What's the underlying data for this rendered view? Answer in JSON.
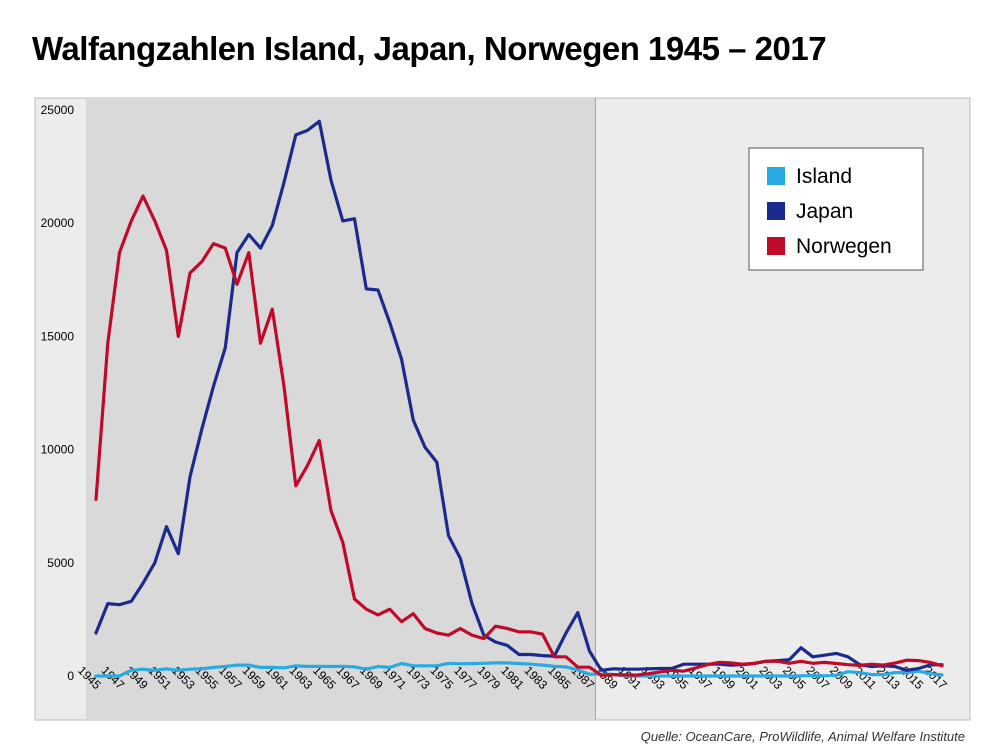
{
  "title": "Walfangzahlen Island, Japan, Norwegen 1945 – 2017",
  "source": "Quelle: OceanCare, ProWildlife, Animal Welfare Institute",
  "chart_data": {
    "type": "line",
    "title": "Walfangzahlen Island, Japan, Norwegen 1945 – 2017",
    "xlabel": "",
    "ylabel": "",
    "ylim": [
      0,
      25000
    ],
    "yticks": [
      0,
      5000,
      10000,
      15000,
      20000,
      25000
    ],
    "xticks": [
      1945,
      1947,
      1949,
      1951,
      1953,
      1955,
      1957,
      1959,
      1961,
      1963,
      1965,
      1967,
      1969,
      1971,
      1973,
      1975,
      1977,
      1979,
      1981,
      1983,
      1985,
      1987,
      1989,
      1991,
      1993,
      1995,
      1997,
      1999,
      2001,
      2003,
      2005,
      2007,
      2009,
      2011,
      2013,
      2015,
      2017
    ],
    "shaded_region": [
      1945,
      1987
    ],
    "grid": false,
    "legend_position": "top-right",
    "series": [
      {
        "name": "Island",
        "color": "#29ABE2",
        "x": [
          1945,
          1946,
          1947,
          1948,
          1949,
          1950,
          1951,
          1952,
          1953,
          1954,
          1955,
          1956,
          1957,
          1958,
          1959,
          1960,
          1961,
          1962,
          1963,
          1964,
          1965,
          1966,
          1967,
          1968,
          1969,
          1970,
          1971,
          1972,
          1973,
          1974,
          1975,
          1976,
          1977,
          1978,
          1979,
          1980,
          1981,
          1982,
          1983,
          1984,
          1985,
          1986,
          1987,
          1988,
          1989,
          1990,
          1991,
          1992,
          1993,
          1994,
          1995,
          1996,
          1997,
          1998,
          1999,
          2000,
          2001,
          2002,
          2003,
          2004,
          2005,
          2006,
          2007,
          2008,
          2009,
          2010,
          2011,
          2012,
          2013,
          2014,
          2015,
          2016,
          2017
        ],
        "values": [
          0,
          0,
          0,
          250,
          300,
          250,
          320,
          250,
          300,
          320,
          380,
          420,
          480,
          480,
          380,
          380,
          360,
          450,
          420,
          430,
          420,
          430,
          400,
          300,
          420,
          380,
          550,
          450,
          450,
          450,
          560,
          540,
          550,
          560,
          580,
          580,
          550,
          520,
          480,
          430,
          400,
          270,
          80,
          80,
          70,
          0,
          0,
          0,
          0,
          0,
          0,
          0,
          0,
          0,
          0,
          0,
          0,
          0,
          0,
          0,
          10,
          20,
          10,
          30,
          190,
          150,
          60,
          60,
          150,
          150,
          210,
          100,
          50
        ]
      },
      {
        "name": "Japan",
        "color": "#1B2B8C",
        "x": [
          1945,
          1946,
          1947,
          1948,
          1949,
          1950,
          1951,
          1952,
          1953,
          1954,
          1955,
          1956,
          1957,
          1958,
          1959,
          1960,
          1961,
          1962,
          1963,
          1964,
          1965,
          1966,
          1967,
          1968,
          1969,
          1970,
          1971,
          1972,
          1973,
          1974,
          1975,
          1976,
          1977,
          1978,
          1979,
          1980,
          1981,
          1982,
          1983,
          1984,
          1985,
          1986,
          1987,
          1988,
          1989,
          1990,
          1991,
          1992,
          1993,
          1994,
          1995,
          1996,
          1997,
          1998,
          1999,
          2000,
          2001,
          2002,
          2003,
          2004,
          2005,
          2006,
          2007,
          2008,
          2009,
          2010,
          2011,
          2012,
          2013,
          2014,
          2015,
          2016,
          2017
        ],
        "values": [
          1900,
          3200,
          3150,
          3300,
          4100,
          5000,
          6600,
          5400,
          8800,
          10900,
          12800,
          14500,
          18700,
          19500,
          18900,
          19900,
          21800,
          23900,
          24100,
          24500,
          21900,
          20100,
          20200,
          17100,
          17050,
          15600,
          14000,
          11300,
          10100,
          9450,
          6200,
          5200,
          3200,
          1800,
          1500,
          1350,
          950,
          950,
          900,
          880,
          1900,
          2800,
          1100,
          250,
          320,
          300,
          300,
          320,
          330,
          330,
          520,
          520,
          520,
          520,
          480,
          500,
          550,
          650,
          680,
          720,
          1250,
          850,
          920,
          1000,
          850,
          500,
          420,
          450,
          420,
          250,
          330,
          490,
          500
        ]
      },
      {
        "name": "Norwegen",
        "color": "#C00A2A",
        "x": [
          1945,
          1946,
          1947,
          1948,
          1949,
          1950,
          1951,
          1952,
          1953,
          1954,
          1955,
          1956,
          1957,
          1958,
          1959,
          1960,
          1961,
          1962,
          1963,
          1964,
          1965,
          1966,
          1967,
          1968,
          1969,
          1970,
          1971,
          1972,
          1973,
          1974,
          1975,
          1976,
          1977,
          1978,
          1979,
          1980,
          1981,
          1982,
          1983,
          1984,
          1985,
          1986,
          1987,
          1988,
          1989,
          1990,
          1991,
          1992,
          1993,
          1994,
          1995,
          1996,
          1997,
          1998,
          1999,
          2000,
          2001,
          2002,
          2003,
          2004,
          2005,
          2006,
          2007,
          2008,
          2009,
          2010,
          2011,
          2012,
          2013,
          2014,
          2015,
          2016,
          2017
        ],
        "values": [
          7800,
          14700,
          18700,
          20100,
          21200,
          20100,
          18800,
          15000,
          17800,
          18300,
          19100,
          18900,
          17300,
          18700,
          14700,
          16200,
          12800,
          8400,
          9300,
          10400,
          7300,
          5900,
          3400,
          2950,
          2700,
          2950,
          2400,
          2750,
          2100,
          1900,
          1800,
          2100,
          1800,
          1650,
          2200,
          2100,
          1950,
          1950,
          1850,
          850,
          850,
          390,
          390,
          30,
          60,
          50,
          40,
          100,
          180,
          250,
          210,
          350,
          500,
          600,
          580,
          520,
          560,
          650,
          650,
          560,
          650,
          560,
          600,
          550,
          500,
          470,
          520,
          480,
          570,
          700,
          680,
          600,
          450
        ]
      }
    ]
  }
}
